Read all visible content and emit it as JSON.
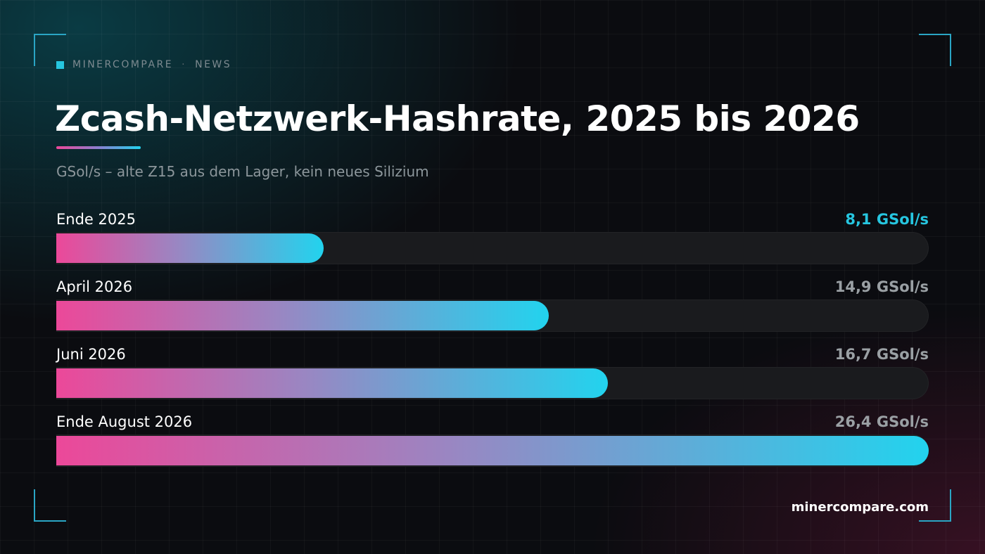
{
  "brand": {
    "name": "MINERCOMPARE",
    "separator": "·",
    "section": "NEWS"
  },
  "chart_data": {
    "type": "bar",
    "orientation": "horizontal",
    "title": "Zcash-Netzwerk-Hashrate, 2025 bis 2026",
    "subtitle": "GSol/s – alte Z15 aus dem Lager, kein neues Silizium",
    "unit": "GSol/s",
    "categories": [
      "Ende 2025",
      "April 2026",
      "Juni 2026",
      "Ende August 2026"
    ],
    "values": [
      8.1,
      14.9,
      16.7,
      26.4
    ],
    "value_labels": [
      "8,1 GSol/s",
      "14,9 GSol/s",
      "16,7 GSol/s",
      "26,4 GSol/s"
    ],
    "highlight_index": 0,
    "xlim": [
      0,
      26.4
    ],
    "colors": {
      "gradient_start": "#ec4899",
      "gradient_end": "#22d3ee",
      "highlight": "#26c6e0",
      "track": "#1a1b1e"
    }
  },
  "footer": {
    "url": "minercompare.com"
  }
}
